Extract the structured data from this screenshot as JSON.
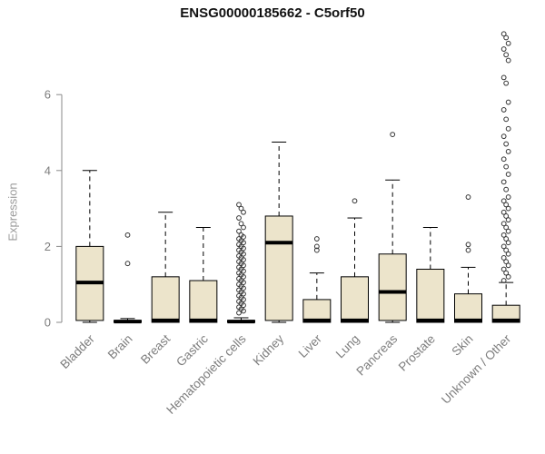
{
  "chart_data": {
    "type": "boxplot",
    "title": "ENSG00000185662 - C5orf50",
    "ylabel": "Expression",
    "xlabel": "",
    "yticks": [
      0,
      2,
      4,
      6
    ],
    "ylim": [
      0,
      7.8
    ],
    "grid": false,
    "legend": "none",
    "box_fill": "#ECE4CB",
    "box_stroke": "#000000",
    "axis_color": "#8a8a8a",
    "tick_label_color": "#7d7d7d",
    "outlier_color": "#333333",
    "categories": [
      "Bladder",
      "Brain",
      "Breast",
      "Gastric",
      "Hematopoietic cells",
      "Kidney",
      "Liver",
      "Lung",
      "Pancreas",
      "Prostate",
      "Skin",
      "Unknown / Other"
    ],
    "boxes": [
      {
        "category": "Bladder",
        "whisker_low": 0,
        "q1": 0.05,
        "median": 1.05,
        "q3": 2.0,
        "whisker_high": 4.0,
        "outliers": []
      },
      {
        "category": "Brain",
        "whisker_low": 0,
        "q1": 0,
        "median": 0.02,
        "q3": 0.05,
        "whisker_high": 0.1,
        "outliers": [
          1.55,
          2.3
        ]
      },
      {
        "category": "Breast",
        "whisker_low": 0,
        "q1": 0,
        "median": 0.05,
        "q3": 1.2,
        "whisker_high": 2.9,
        "outliers": []
      },
      {
        "category": "Gastric",
        "whisker_low": 0,
        "q1": 0,
        "median": 0.05,
        "q3": 1.1,
        "whisker_high": 2.5,
        "outliers": []
      },
      {
        "category": "Hematopoietic cells",
        "whisker_low": 0,
        "q1": 0,
        "median": 0.02,
        "q3": 0.05,
        "whisker_high": 0.12,
        "outliers": [
          0.25,
          0.3,
          0.35,
          0.4,
          0.45,
          0.5,
          0.55,
          0.6,
          0.65,
          0.7,
          0.75,
          0.8,
          0.85,
          0.9,
          0.95,
          1.0,
          1.05,
          1.1,
          1.15,
          1.2,
          1.25,
          1.3,
          1.35,
          1.4,
          1.45,
          1.5,
          1.55,
          1.6,
          1.65,
          1.7,
          1.75,
          1.8,
          1.85,
          1.9,
          1.95,
          2.0,
          2.05,
          2.1,
          2.15,
          2.2,
          2.25,
          2.3,
          2.4,
          2.5,
          2.6,
          2.75,
          2.9,
          3.0,
          3.1
        ]
      },
      {
        "category": "Kidney",
        "whisker_low": 0,
        "q1": 0.05,
        "median": 2.1,
        "q3": 2.8,
        "whisker_high": 4.75,
        "outliers": []
      },
      {
        "category": "Liver",
        "whisker_low": 0,
        "q1": 0,
        "median": 0.05,
        "q3": 0.6,
        "whisker_high": 1.3,
        "outliers": [
          1.9,
          2.0,
          2.2
        ]
      },
      {
        "category": "Lung",
        "whisker_low": 0,
        "q1": 0,
        "median": 0.05,
        "q3": 1.2,
        "whisker_high": 2.75,
        "outliers": [
          3.2
        ]
      },
      {
        "category": "Pancreas",
        "whisker_low": 0,
        "q1": 0.05,
        "median": 0.8,
        "q3": 1.8,
        "whisker_high": 3.75,
        "outliers": [
          4.95
        ]
      },
      {
        "category": "Prostate",
        "whisker_low": 0,
        "q1": 0,
        "median": 0.05,
        "q3": 1.4,
        "whisker_high": 2.5,
        "outliers": []
      },
      {
        "category": "Skin",
        "whisker_low": 0,
        "q1": 0,
        "median": 0.05,
        "q3": 0.75,
        "whisker_high": 1.45,
        "outliers": [
          1.9,
          2.05,
          3.3
        ]
      },
      {
        "category": "Unknown / Other",
        "whisker_low": 0,
        "q1": 0,
        "median": 0.05,
        "q3": 0.45,
        "whisker_high": 1.05,
        "outliers": [
          1.1,
          1.2,
          1.3,
          1.4,
          1.5,
          1.6,
          1.7,
          1.8,
          1.9,
          2.0,
          2.1,
          2.2,
          2.3,
          2.4,
          2.5,
          2.6,
          2.7,
          2.8,
          2.9,
          3.0,
          3.1,
          3.2,
          3.3,
          3.5,
          3.7,
          3.9,
          4.1,
          4.3,
          4.5,
          4.7,
          4.9,
          5.1,
          5.35,
          5.6,
          5.8,
          6.3,
          6.45,
          6.9,
          7.05,
          7.2,
          7.35,
          7.5,
          7.6
        ]
      }
    ]
  }
}
